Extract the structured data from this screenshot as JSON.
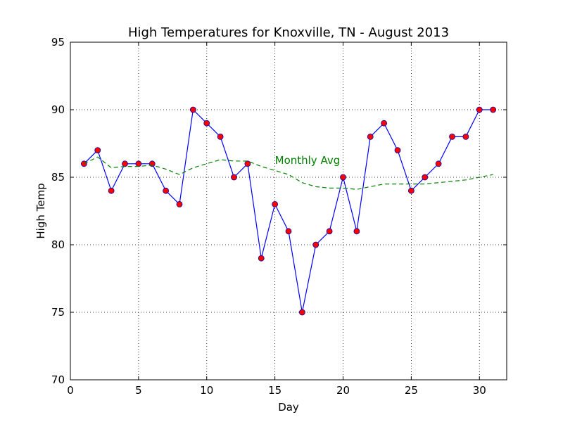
{
  "chart_data": {
    "type": "line",
    "title": "High Temperatures for Knoxville, TN - August 2013",
    "xlabel": "Day",
    "ylabel": "High Temp",
    "xlim": [
      0,
      32
    ],
    "ylim": [
      70,
      95
    ],
    "xticks": [
      0,
      5,
      10,
      15,
      20,
      25,
      30
    ],
    "yticks": [
      70,
      75,
      80,
      85,
      90,
      95
    ],
    "grid": true,
    "series": [
      {
        "x": [
          1,
          2,
          3,
          4,
          5,
          6,
          7,
          8,
          9,
          10,
          11,
          12,
          13,
          14,
          15,
          16,
          17,
          18,
          19,
          20,
          21,
          22,
          23,
          24,
          25,
          26,
          27,
          28,
          29,
          30,
          31
        ],
        "values": [
          86,
          87,
          84,
          86,
          86,
          86,
          84,
          83,
          90,
          89,
          88,
          85,
          86,
          79,
          83,
          81,
          75,
          80,
          81,
          85,
          81,
          88,
          89,
          87,
          84,
          85,
          86,
          88,
          88,
          90,
          90
        ],
        "line_color": "#0000ff",
        "marker_color": "#ff0000",
        "marker_edge": "#0000aa",
        "style": "solid"
      },
      {
        "x": [
          1,
          2,
          3,
          4,
          5,
          6,
          7,
          8,
          9,
          10,
          11,
          12,
          13,
          14,
          15,
          16,
          17,
          18,
          19,
          20,
          21,
          22,
          23,
          24,
          25,
          26,
          27,
          28,
          29,
          30,
          31
        ],
        "values": [
          86.0,
          86.5,
          85.7,
          85.8,
          85.8,
          85.9,
          85.6,
          85.2,
          85.7,
          86.0,
          86.3,
          86.2,
          86.2,
          85.8,
          85.5,
          85.2,
          84.6,
          84.3,
          84.2,
          84.2,
          84.1,
          84.3,
          84.5,
          84.5,
          84.5,
          84.5,
          84.6,
          84.7,
          84.8,
          85.0,
          85.2
        ],
        "line_color": "#008000",
        "style": "dashed"
      }
    ],
    "annotations": [
      {
        "text": "Monthly Avg",
        "x": 15.0,
        "y": 86.0,
        "color": "#008000"
      }
    ]
  }
}
